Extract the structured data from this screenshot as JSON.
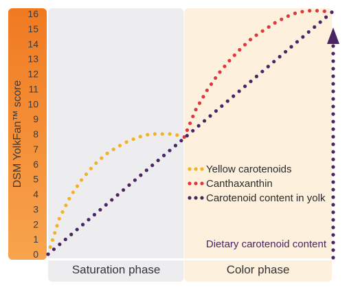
{
  "chart_data": {
    "type": "line",
    "title": "",
    "ylabel": "DSM YolkFan™ score",
    "xlabel": "",
    "ylim": [
      0,
      16
    ],
    "yticks": [
      "0",
      "1",
      "2",
      "3",
      "4",
      "5",
      "6",
      "7",
      "8",
      "9",
      "10",
      "11",
      "12",
      "13",
      "14",
      "15",
      "16"
    ],
    "x_range": [
      0,
      1
    ],
    "phases": [
      {
        "label": "Saturation phase",
        "x_start": 0,
        "x_end": 0.48,
        "color": "#ededf0"
      },
      {
        "label": "Color phase",
        "x_start": 0.48,
        "x_end": 1,
        "color": "#fdf0dd"
      }
    ],
    "legend_position": "center-right",
    "series": [
      {
        "name": "Yellow carotenoids",
        "color": "#f3b125",
        "x": [
          0,
          0.04,
          0.08,
          0.12,
          0.16,
          0.2,
          0.24,
          0.28,
          0.32,
          0.36,
          0.4,
          0.44,
          0.48
        ],
        "y": [
          0,
          2.4,
          3.9,
          5.0,
          5.9,
          6.6,
          7.1,
          7.5,
          7.8,
          8.0,
          8.0,
          8.0,
          7.8
        ]
      },
      {
        "name": "Canthaxanthin",
        "color": "#e0373e",
        "x": [
          0.48,
          0.52,
          0.56,
          0.6,
          0.64,
          0.68,
          0.72,
          0.76,
          0.8,
          0.84,
          0.88,
          0.92,
          0.96,
          1.0
        ],
        "y": [
          7.8,
          9.6,
          10.9,
          12.0,
          12.9,
          13.7,
          14.4,
          14.9,
          15.4,
          15.8,
          16.1,
          16.2,
          16.2,
          16.1
        ]
      },
      {
        "name": "Carotenoid content in yolk",
        "color": "#4a2463",
        "x": [
          0,
          1
        ],
        "y": [
          0,
          16.1
        ]
      }
    ],
    "annotation": {
      "label": "Dietary carotenoid content",
      "color": "#4a2463"
    },
    "colors": {
      "y_axis_gradient_top": "#f07a22",
      "y_axis_gradient_bottom": "#f8a44e",
      "tick_text": "#3a3a3a"
    }
  }
}
